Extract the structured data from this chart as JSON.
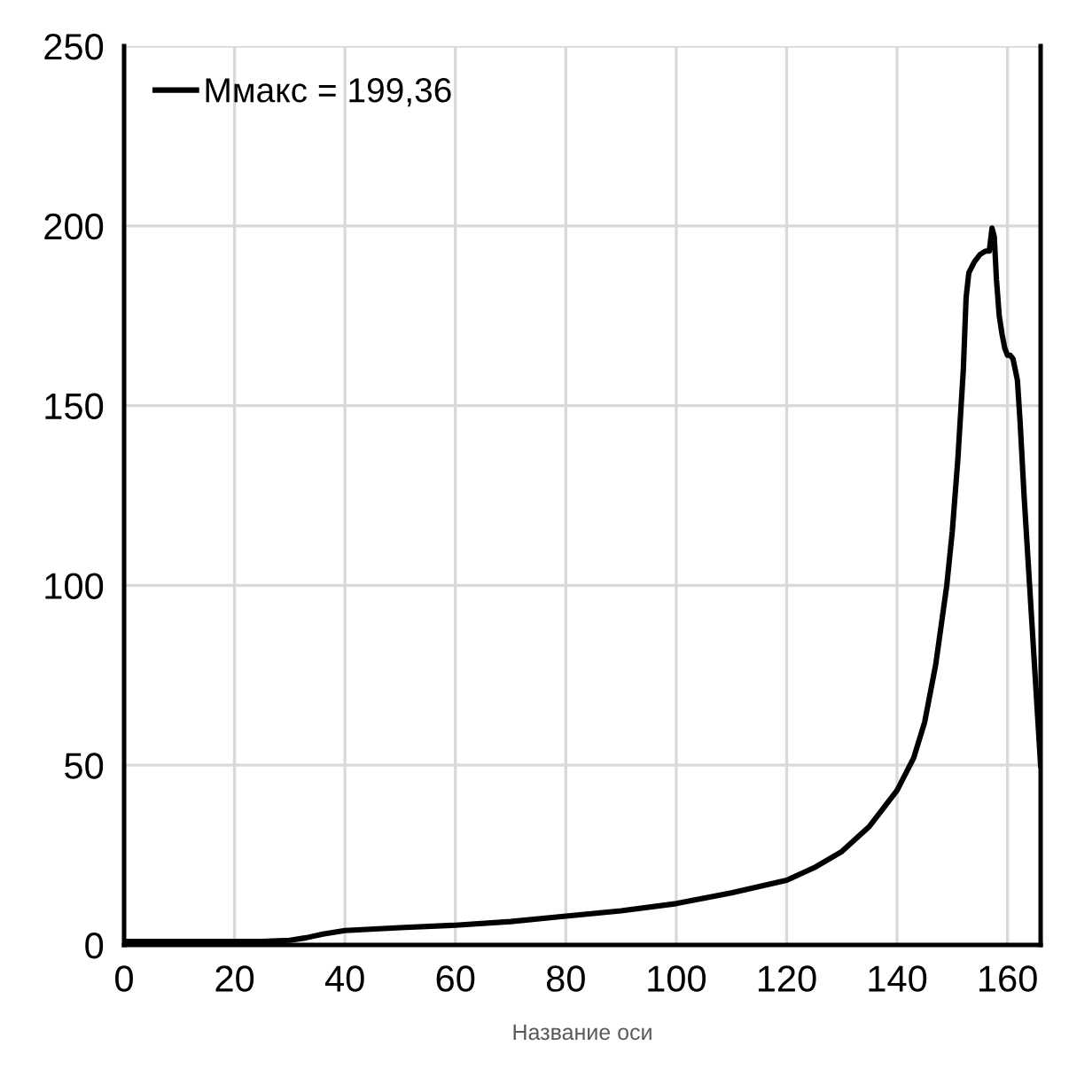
{
  "chart_data": {
    "type": "line",
    "xlabel": "Название оси",
    "series": [
      {
        "name": "Mмакс = 199,36",
        "color": "#000000",
        "x": [
          0,
          10,
          20,
          25,
          30,
          33,
          36,
          38,
          40,
          50,
          60,
          70,
          80,
          90,
          100,
          110,
          120,
          125,
          130,
          135,
          140,
          143,
          145,
          147,
          149,
          150,
          151,
          152,
          152.5,
          153,
          154,
          155,
          156,
          156.7,
          157.2,
          157.6,
          158,
          158.5,
          159,
          159.5,
          160,
          160.5,
          161,
          161.8,
          162.3,
          163,
          164,
          165,
          166
        ],
        "values": [
          1,
          1,
          1,
          1,
          1.3,
          2,
          3,
          3.5,
          4,
          4.8,
          5.5,
          6.5,
          8,
          9.5,
          11.5,
          14.5,
          18,
          21.5,
          26,
          33,
          43,
          52,
          62,
          78,
          100,
          115,
          135,
          160,
          180,
          187,
          190,
          192,
          193,
          193,
          199.36,
          197,
          185,
          175,
          170,
          166,
          164,
          164,
          163,
          157,
          145,
          125,
          100,
          75,
          50
        ]
      }
    ],
    "xlim": [
      0,
      166
    ],
    "ylim": [
      0,
      250
    ],
    "xticks": [
      0,
      20,
      40,
      60,
      80,
      100,
      120,
      140,
      160
    ],
    "yticks": [
      0,
      50,
      100,
      150,
      200,
      250
    ],
    "grid": true,
    "legend": "top left",
    "marker": "none",
    "line_style": "solid"
  }
}
